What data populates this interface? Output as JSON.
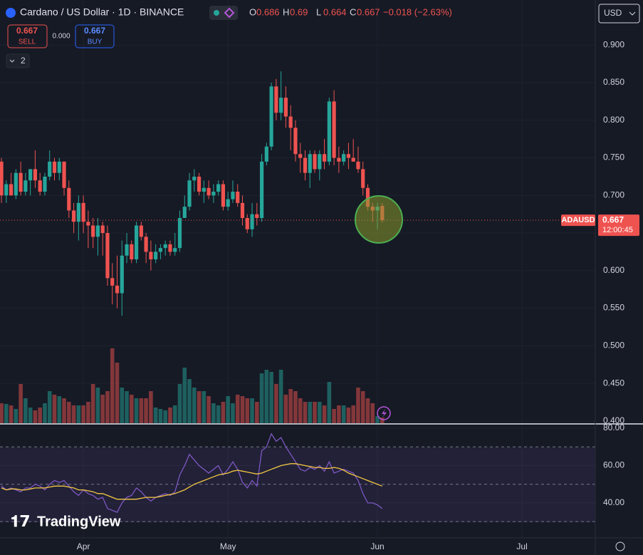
{
  "chart_data": {
    "type": "candlestick",
    "title": "Cardano / US Dollar · 1D · BINANCE",
    "symbol": "ADAUSD",
    "countdown": "12:00:45",
    "ohlc_letters": [
      "O",
      "H",
      "L",
      "C"
    ],
    "change": "−0.018 (−2.63%)",
    "up_color": "#26a69a",
    "down_color": "#ef5350",
    "grid": true,
    "xlim": [
      -0.3,
      123.2
    ],
    "xticks": [
      {
        "value": 17,
        "label": "Apr"
      },
      {
        "value": 47,
        "label": "May"
      },
      {
        "value": 78,
        "label": "Jun"
      },
      {
        "value": 108,
        "label": "Jul"
      }
    ],
    "ylim": [
      0.397,
      0.96
    ],
    "yticks": [
      {
        "value": 0.4,
        "label": "0.400"
      },
      {
        "value": 0.45,
        "label": "0.450"
      },
      {
        "value": 0.5,
        "label": "0.500"
      },
      {
        "value": 0.55,
        "label": "0.550"
      },
      {
        "value": 0.6,
        "label": "0.600"
      },
      {
        "value": 0.65,
        "label": "0.650"
      },
      {
        "value": 0.7,
        "label": "0.700"
      },
      {
        "value": 0.75,
        "label": "0.750"
      },
      {
        "value": 0.8,
        "label": "0.800"
      },
      {
        "value": 0.85,
        "label": "0.850"
      },
      {
        "value": 0.9,
        "label": "0.900"
      }
    ],
    "last_price": {
      "value": 0.667,
      "label": "0.667"
    },
    "open": [
      0.745,
      0.7,
      0.715,
      0.7,
      0.73,
      0.705,
      0.72,
      0.735,
      0.72,
      0.705,
      0.725,
      0.745,
      0.73,
      0.745,
      0.71,
      0.68,
      0.665,
      0.69,
      0.665,
      0.66,
      0.645,
      0.66,
      0.65,
      0.59,
      0.58,
      0.57,
      0.62,
      0.635,
      0.615,
      0.66,
      0.645,
      0.625,
      0.615,
      0.625,
      0.63,
      0.635,
      0.625,
      0.63,
      0.67,
      0.685,
      0.72,
      0.725,
      0.705,
      0.71,
      0.7,
      0.705,
      0.715,
      0.685,
      0.695,
      0.705,
      0.69,
      0.67,
      0.655,
      0.675,
      0.67,
      0.745,
      0.765,
      0.845,
      0.81,
      0.83,
      0.805,
      0.79,
      0.755,
      0.75,
      0.73,
      0.755,
      0.735,
      0.755,
      0.745,
      0.825,
      0.75,
      0.745,
      0.755,
      0.75,
      0.745,
      0.735,
      0.71,
      0.685,
      0.68,
      0.686
    ],
    "high": [
      0.75,
      0.72,
      0.73,
      0.735,
      0.745,
      0.73,
      0.735,
      0.76,
      0.73,
      0.73,
      0.76,
      0.75,
      0.75,
      0.745,
      0.72,
      0.69,
      0.7,
      0.7,
      0.68,
      0.67,
      0.67,
      0.665,
      0.66,
      0.61,
      0.62,
      0.64,
      0.65,
      0.64,
      0.665,
      0.665,
      0.65,
      0.64,
      0.635,
      0.635,
      0.64,
      0.64,
      0.65,
      0.68,
      0.7,
      0.73,
      0.735,
      0.73,
      0.72,
      0.72,
      0.715,
      0.72,
      0.72,
      0.705,
      0.72,
      0.715,
      0.7,
      0.675,
      0.69,
      0.69,
      0.755,
      0.77,
      0.85,
      0.855,
      0.865,
      0.845,
      0.82,
      0.8,
      0.77,
      0.76,
      0.76,
      0.76,
      0.76,
      0.775,
      0.83,
      0.84,
      0.765,
      0.76,
      0.77,
      0.775,
      0.765,
      0.745,
      0.715,
      0.69,
      0.69,
      0.69
    ],
    "low": [
      0.69,
      0.69,
      0.7,
      0.695,
      0.7,
      0.7,
      0.7,
      0.71,
      0.7,
      0.7,
      0.72,
      0.72,
      0.72,
      0.7,
      0.67,
      0.65,
      0.64,
      0.65,
      0.63,
      0.63,
      0.62,
      0.62,
      0.58,
      0.555,
      0.55,
      0.54,
      0.61,
      0.61,
      0.61,
      0.64,
      0.61,
      0.6,
      0.61,
      0.615,
      0.62,
      0.62,
      0.62,
      0.625,
      0.67,
      0.68,
      0.705,
      0.7,
      0.69,
      0.695,
      0.69,
      0.7,
      0.68,
      0.68,
      0.69,
      0.685,
      0.66,
      0.65,
      0.645,
      0.66,
      0.665,
      0.74,
      0.76,
      0.8,
      0.8,
      0.79,
      0.76,
      0.745,
      0.73,
      0.72,
      0.71,
      0.73,
      0.72,
      0.735,
      0.74,
      0.74,
      0.73,
      0.74,
      0.735,
      0.745,
      0.73,
      0.7,
      0.68,
      0.665,
      0.655,
      0.664
    ],
    "close": [
      0.7,
      0.715,
      0.7,
      0.73,
      0.705,
      0.72,
      0.735,
      0.72,
      0.705,
      0.725,
      0.745,
      0.73,
      0.745,
      0.71,
      0.68,
      0.665,
      0.69,
      0.665,
      0.66,
      0.645,
      0.66,
      0.65,
      0.59,
      0.58,
      0.57,
      0.62,
      0.635,
      0.615,
      0.66,
      0.645,
      0.625,
      0.615,
      0.625,
      0.63,
      0.635,
      0.625,
      0.63,
      0.67,
      0.685,
      0.72,
      0.725,
      0.705,
      0.71,
      0.7,
      0.705,
      0.715,
      0.685,
      0.695,
      0.705,
      0.69,
      0.67,
      0.655,
      0.675,
      0.67,
      0.745,
      0.765,
      0.845,
      0.81,
      0.83,
      0.805,
      0.79,
      0.755,
      0.75,
      0.73,
      0.755,
      0.735,
      0.755,
      0.745,
      0.825,
      0.75,
      0.745,
      0.755,
      0.75,
      0.745,
      0.735,
      0.71,
      0.685,
      0.68,
      0.685,
      0.667
    ],
    "volume": [
      28,
      27,
      25,
      20,
      55,
      35,
      22,
      18,
      22,
      28,
      45,
      40,
      38,
      35,
      30,
      25,
      25,
      25,
      30,
      55,
      50,
      40,
      45,
      105,
      85,
      50,
      45,
      40,
      35,
      35,
      35,
      45,
      22,
      20,
      18,
      22,
      25,
      55,
      78,
      62,
      50,
      45,
      45,
      38,
      28,
      25,
      30,
      38,
      28,
      40,
      38,
      35,
      35,
      30,
      70,
      75,
      72,
      55,
      75,
      40,
      48,
      45,
      35,
      30,
      30,
      30,
      30,
      25,
      58,
      20,
      25,
      25,
      22,
      25,
      50,
      45,
      35,
      28,
      10,
      8
    ],
    "rsi": {
      "ylim": [
        21.3,
        81.9
      ],
      "yticks": [
        {
          "value": 40,
          "label": "40.00"
        },
        {
          "value": 60,
          "label": "60.00"
        },
        {
          "value": 80,
          "label": "80.00"
        }
      ],
      "levels": [
        30,
        50,
        70
      ],
      "color": "#7e57c2",
      "ma_color": "#f5c842",
      "values": [
        49,
        47,
        48,
        47,
        46,
        48,
        48,
        50,
        49,
        47,
        50,
        52,
        51,
        52,
        49,
        46,
        44,
        47,
        45,
        44,
        42,
        43,
        37,
        36,
        35,
        40,
        43,
        44,
        48,
        46,
        43,
        41,
        43,
        44,
        45,
        44,
        46,
        55,
        60,
        66,
        63,
        60,
        58,
        56,
        58,
        60,
        55,
        58,
        62,
        58,
        51,
        48,
        52,
        49,
        68,
        70,
        77,
        73,
        75,
        70,
        66,
        62,
        58,
        57,
        59,
        58,
        60,
        57,
        62,
        56,
        57,
        58,
        57,
        56,
        52,
        45,
        40,
        40,
        39,
        37
      ],
      "ma": [
        48,
        47,
        47.5,
        47.5,
        47,
        47,
        47.5,
        48,
        48,
        48,
        48.5,
        49,
        49,
        49,
        48.5,
        48,
        47,
        47,
        46.5,
        46,
        45,
        45,
        44,
        43,
        42,
        42,
        42,
        42,
        42,
        42.5,
        43,
        43,
        43,
        43.5,
        44,
        44.5,
        45,
        46,
        47,
        48.5,
        50,
        51,
        52,
        53,
        54,
        55,
        55.5,
        56,
        57,
        57.5,
        57,
        56.5,
        56,
        55.5,
        56,
        57,
        58,
        59,
        60,
        60.5,
        61,
        61,
        60.5,
        60,
        59.5,
        59,
        59,
        58.5,
        58.5,
        59,
        58.5,
        57.5,
        56,
        55,
        54,
        53,
        52,
        51,
        50,
        49
      ]
    }
  },
  "toolbar": {
    "sell_price": "0.667",
    "sell": "SELL",
    "spread": "0.000",
    "buy_price": "0.667",
    "buy": "BUY",
    "indicators_count": "2",
    "currency": "USD",
    "brand": "TradingView"
  }
}
